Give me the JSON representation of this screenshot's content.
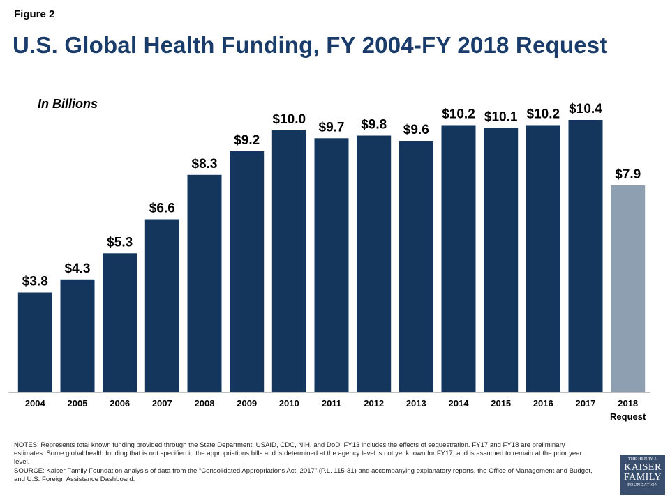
{
  "figure_label": "Figure 2",
  "title": "U.S. Global Health Funding, FY 2004-FY 2018 Request",
  "units_label": "In Billions",
  "chart_data": {
    "type": "bar",
    "categories": [
      "2004",
      "2005",
      "2006",
      "2007",
      "2008",
      "2009",
      "2010",
      "2011",
      "2012",
      "2013",
      "2014",
      "2015",
      "2016",
      "2017",
      "2018"
    ],
    "category_sublabels": [
      "",
      "",
      "",
      "",
      "",
      "",
      "",
      "",
      "",
      "",
      "",
      "",
      "",
      "",
      "Request"
    ],
    "values": [
      3.8,
      4.3,
      5.3,
      6.6,
      8.3,
      9.2,
      10.0,
      9.7,
      9.8,
      9.6,
      10.2,
      10.1,
      10.2,
      10.4,
      7.9
    ],
    "data_labels": [
      "$3.8",
      "$4.3",
      "$5.3",
      "$6.6",
      "$8.3",
      "$9.2",
      "$10.0",
      "$9.7",
      "$9.8",
      "$9.6",
      "$10.2",
      "$10.1",
      "$10.2",
      "$10.4",
      "$7.9"
    ],
    "highlight_index": 14,
    "ylim": [
      0,
      12
    ],
    "grid": false,
    "colors": {
      "bar": "#14365c",
      "highlight": "#8d9fb0",
      "axis": "#bfbfbf"
    }
  },
  "notes": "NOTES: Represents total known funding provided through the State Department, USAID, CDC, NIH, and DoD. FY13 includes the effects of sequestration. FY17 and FY18 are preliminary estimates. Some global health funding that is not specified in the appropriations bills and is determined at the agency level is not yet known for FY17, and is assumed to remain at the prior year level.",
  "source": "SOURCE: Kaiser Family Foundation analysis of data from the “Consolidated Appropriations Act, 2017” (P.L. 115-31) and accompanying explanatory reports, the Office of Management and Budget, and U.S. Foreign Assistance Dashboard.",
  "logo": {
    "line1": "THE HENRY J.",
    "line2": "KAISER",
    "line3": "FAMILY",
    "line4": "FOUNDATION",
    "color": "#3a4f6d"
  }
}
